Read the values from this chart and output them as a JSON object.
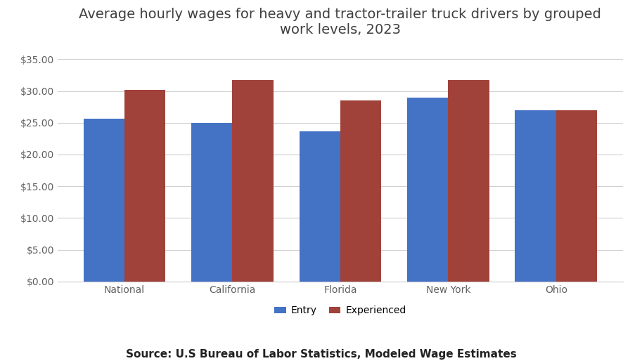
{
  "title": "Average hourly wages for heavy and tractor-trailer truck drivers by grouped\nwork levels, 2023",
  "categories": [
    "National",
    "California",
    "Florida",
    "New York",
    "Ohio"
  ],
  "entry_values": [
    25.6,
    25.0,
    23.6,
    28.9,
    27.0
  ],
  "experienced_values": [
    30.15,
    31.7,
    28.5,
    31.7,
    27.0
  ],
  "entry_color": "#4472C4",
  "experienced_color": "#A0423A",
  "ylim": [
    0,
    37.5
  ],
  "yticks": [
    0,
    5.0,
    10.0,
    15.0,
    20.0,
    25.0,
    30.0,
    35.0
  ],
  "legend_labels": [
    "Entry",
    "Experienced"
  ],
  "source_text": "Source: U.S Bureau of Labor Statistics, Modeled Wage Estimates",
  "bar_width": 0.38,
  "background_color": "#ffffff",
  "title_fontsize": 14,
  "tick_fontsize": 10,
  "legend_fontsize": 10,
  "source_fontsize": 11,
  "title_color": "#404040",
  "tick_color": "#606060",
  "grid_color": "#d0d0d0"
}
